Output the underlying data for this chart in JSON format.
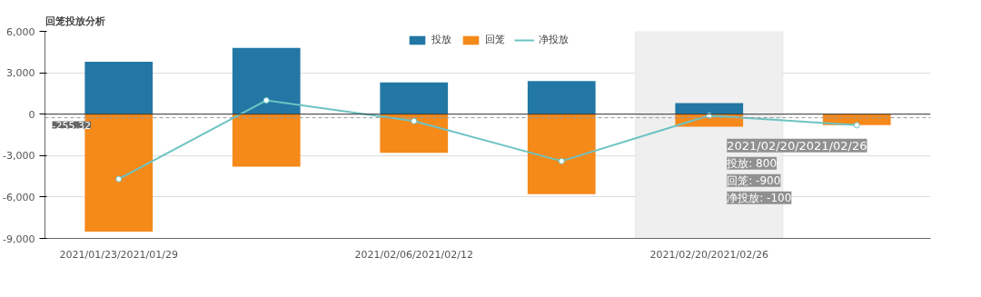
{
  "chart_data": {
    "type": "bar",
    "title": "回笼投放分析",
    "stacked": true,
    "categories": [
      "2021/01/23/2021/01/29",
      null,
      "2021/02/06/2021/02/12",
      null,
      "2021/02/20/2021/02/26",
      null
    ],
    "series": [
      {
        "name": "投放",
        "color": "#2277a4",
        "values": [
          3800,
          4800,
          2300,
          2400,
          800,
          0
        ]
      },
      {
        "name": "回笼",
        "color": "#f5891a",
        "values": [
          -8500,
          -3800,
          -2800,
          -5800,
          -900,
          -800
        ]
      },
      {
        "name": "净投放",
        "color": "#6cc3c3",
        "type": "line",
        "marker": "circle",
        "values": [
          -4700,
          1000,
          -500,
          -3400,
          -100,
          -800
        ]
      }
    ],
    "ylim": [
      -9000,
      6000
    ],
    "yticks": [
      {
        "value": -9000,
        "label": "-9,000"
      },
      {
        "value": -6000,
        "label": "-6,000"
      },
      {
        "value": -3000,
        "label": "-3,000"
      },
      0,
      {
        "value": 3000,
        "label": "3,000"
      },
      {
        "value": 6000,
        "label": "6,000"
      }
    ],
    "grid": "y",
    "legend": "top",
    "ref_lines": [
      {
        "axis": "y",
        "value": -255.32,
        "label": "-255.32",
        "color": "#999999",
        "line_style": "dashed"
      }
    ],
    "bands": [
      {
        "axis": "x",
        "from": "2021/02/20/2021/02/26",
        "to": "2021/02/20/2021/02/26",
        "color": "#efefef"
      }
    ],
    "annotations": [
      "2021/02/20/2021/02/26",
      "投放: 800",
      "回笼: -900",
      "净投放: -100"
    ]
  }
}
